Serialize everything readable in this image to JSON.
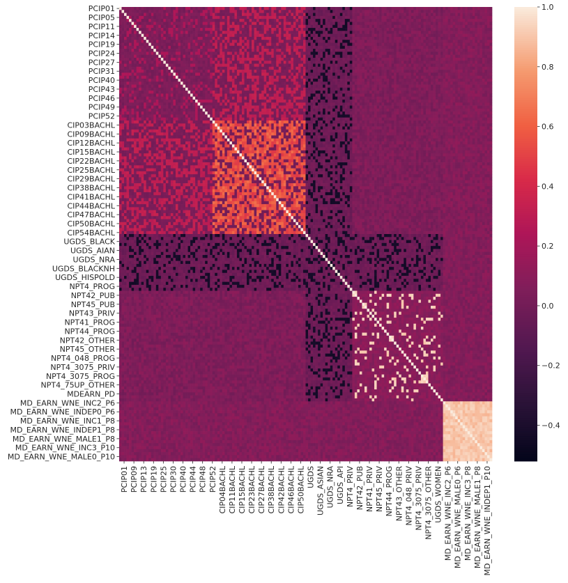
{
  "chart_data": {
    "type": "heatmap",
    "title": "",
    "xlabel": "",
    "ylabel": "",
    "n": 112,
    "y_tick_labels": [
      {
        "i": 0,
        "label": "PCIP01"
      },
      {
        "i": 3,
        "label": "PCIP05"
      },
      {
        "i": 6,
        "label": "PCIP11"
      },
      {
        "i": 9,
        "label": "PCIP14"
      },
      {
        "i": 12,
        "label": "PCIP19"
      },
      {
        "i": 15,
        "label": "PCIP24"
      },
      {
        "i": 18,
        "label": "PCIP27"
      },
      {
        "i": 21,
        "label": "PCIP31"
      },
      {
        "i": 24,
        "label": "PCIP40"
      },
      {
        "i": 27,
        "label": "PCIP43"
      },
      {
        "i": 30,
        "label": "PCIP46"
      },
      {
        "i": 33,
        "label": "PCIP49"
      },
      {
        "i": 36,
        "label": "PCIP52"
      },
      {
        "i": 39,
        "label": "CIP03BACHL"
      },
      {
        "i": 42,
        "label": "CIP09BACHL"
      },
      {
        "i": 45,
        "label": "CIP12BACHL"
      },
      {
        "i": 48,
        "label": "CIP15BACHL"
      },
      {
        "i": 51,
        "label": "CIP22BACHL"
      },
      {
        "i": 54,
        "label": "CIP25BACHL"
      },
      {
        "i": 57,
        "label": "CIP29BACHL"
      },
      {
        "i": 60,
        "label": "CIP38BACHL"
      },
      {
        "i": 63,
        "label": "CIP41BACHL"
      },
      {
        "i": 66,
        "label": "CIP44BACHL"
      },
      {
        "i": 69,
        "label": "CIP47BACHL"
      },
      {
        "i": 72,
        "label": "CIP50BACHL"
      },
      {
        "i": 75,
        "label": "CIP54BACHL"
      },
      {
        "i": 78,
        "label": "UGDS_BLACK"
      },
      {
        "i": 81,
        "label": "UGDS_AIAN"
      },
      {
        "i": 84,
        "label": "UGDS_NRA"
      },
      {
        "i": 87,
        "label": "UGDS_BLACKNH"
      },
      {
        "i": 90,
        "label": "UGDS_HISPOLD"
      },
      {
        "i": 93,
        "label": "NPT4_PROG"
      },
      {
        "i": 96,
        "label": "NPT42_PUB"
      },
      {
        "i": 99,
        "label": "NPT45_PUB"
      },
      {
        "i": 102,
        "label": "NPT43_PRIV"
      },
      {
        "i": 105,
        "label": "NPT41_PROG"
      },
      {
        "i": 108,
        "label": "NPT44_PROG"
      },
      {
        "i": 111,
        "label": "NPT42_OTHER"
      }
    ],
    "y_tick_labels_lower": [
      {
        "i": 114,
        "label": "NPT45_OTHER"
      },
      {
        "i": 117,
        "label": "NPT4_048_PROG"
      },
      {
        "i": 120,
        "label": "NPT4_3075_PRIV"
      },
      {
        "i": 123,
        "label": "NPT4_3075_PROG"
      },
      {
        "i": 126,
        "label": "NPT4_75UP_OTHER"
      },
      {
        "i": 129,
        "label": "MDEARN_PD"
      },
      {
        "i": 132,
        "label": "MD_EARN_WNE_INC2_P6"
      },
      {
        "i": 135,
        "label": "MD_EARN_WNE_INDEP0_P6"
      },
      {
        "i": 138,
        "label": "MD_EARN_WNE_INC1_P8"
      },
      {
        "i": 141,
        "label": "MD_EARN_WNE_INDEP1_P8"
      },
      {
        "i": 144,
        "label": "MD_EARN_WNE_MALE1_P8"
      },
      {
        "i": 147,
        "label": "MD_EARN_WNE_INC3_P10"
      },
      {
        "i": 150,
        "label": "MD_EARN_WNE_MALE0_P10"
      }
    ],
    "x_tick_labels": [
      "PCIP01",
      "PCIP09",
      "PCIP13",
      "PCIP19",
      "PCIP25",
      "PCIP30",
      "PCIP40",
      "PCIP44",
      "PCIP48",
      "PCIP52",
      "CIP04BACHL",
      "CIP11BACHL",
      "CIP15BACHL",
      "CIP23BACHL",
      "CIP27BACHL",
      "CIP38BACHL",
      "CIP42BACHL",
      "CIP46BACHL",
      "CIP50BACHL",
      "UGDS",
      "UGDS_ASIAN",
      "UGDS_NRA",
      "UGDS_API",
      "NPT4_PRIV",
      "NPT42_PUB",
      "NPT41_PRIV",
      "NPT45_PRIV",
      "NPT44_PROG",
      "NPT43_OTHER",
      "NPT4_048_PRIV",
      "NPT4_3075_PRIV",
      "NPT4_3075_OTHER",
      "UGDS_WOMEN",
      "MD_EARN_WNE_INC2_P6",
      "MD_EARN_WNE_MALE0_P6",
      "MD_EARN_WNE_INC3_P8",
      "MD_EARN_WNE_MALE1_P8",
      "MD_EARN_WNE_INDEP1_P10"
    ],
    "colorbar": {
      "vmin": -0.52,
      "vmax": 1.0,
      "ticks": [
        "1.0",
        "0.8",
        "0.6",
        "0.4",
        "0.2",
        "0.0",
        "−0.2",
        "−0.4"
      ],
      "tick_values": [
        1.0,
        0.8,
        0.6,
        0.4,
        0.2,
        0.0,
        -0.2,
        -0.4
      ],
      "colormap": "rocket"
    },
    "groups": {
      "pcip_end": 38,
      "cip_end": 76,
      "ugds_end": 95,
      "npt_end": 131,
      "earn_start": 132
    },
    "grid": false
  }
}
